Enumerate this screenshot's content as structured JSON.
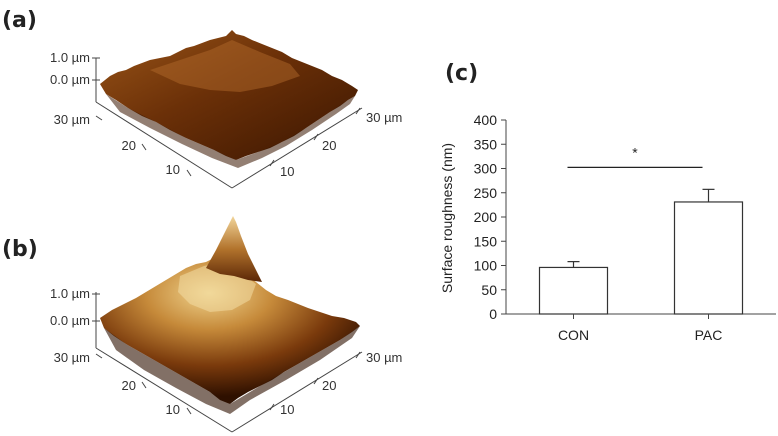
{
  "panels": {
    "a": {
      "label": "(a)",
      "z_ticks": [
        "1.0 µm",
        "0.0 µm"
      ],
      "left_ticks": [
        "30 µm",
        "20",
        "10"
      ],
      "right_ticks": [
        "30 µm",
        "20",
        "10"
      ]
    },
    "b": {
      "label": "(b)",
      "z_ticks": [
        "1.0 µm",
        "0.0 µm"
      ],
      "left_ticks": [
        "30 µm",
        "20",
        "10"
      ],
      "right_ticks": [
        "30 µm",
        "20",
        "10"
      ]
    },
    "c": {
      "label": "(c)"
    }
  },
  "chart_data": {
    "type": "bar",
    "categories": [
      "CON",
      "PAC"
    ],
    "values": [
      96,
      231
    ],
    "errors": [
      12,
      26
    ],
    "ylabel": "Surface roughness (nm)",
    "ylim": [
      0,
      400
    ],
    "yticks": [
      0,
      50,
      100,
      150,
      200,
      250,
      300,
      350,
      400
    ],
    "significance": {
      "label": "*",
      "between": [
        "CON",
        "PAC"
      ]
    },
    "grid": false,
    "bar_color": "#ffffff",
    "edge_color": "#333333"
  },
  "colors": {
    "surface_dark": "#3a1500",
    "surface_mid": "#8a4410",
    "surface_light": "#e8c27a"
  }
}
